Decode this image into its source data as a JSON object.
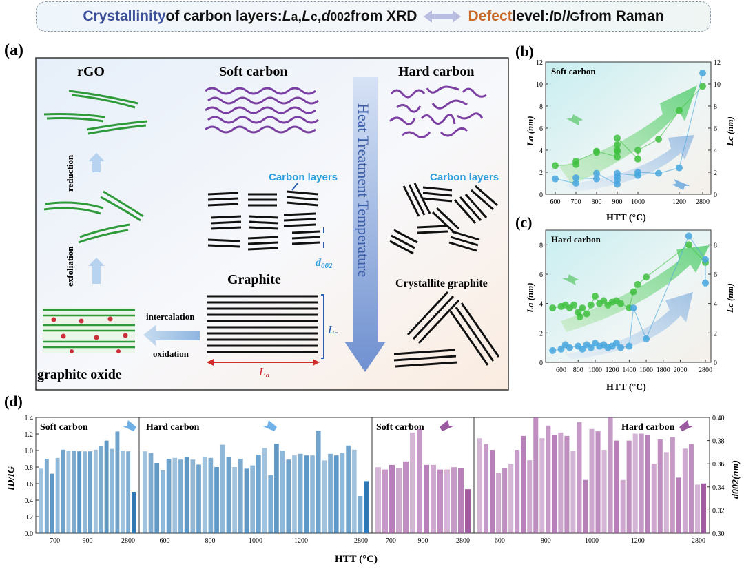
{
  "header": {
    "part1": "Crystallinity",
    "part2": " of carbon layers: ",
    "part3": "L",
    "part4": "a",
    "part5": ", ",
    "part6": "L",
    "part7": "c",
    "part8": ", ",
    "part9": "d",
    "part10": "002",
    "part11": " from XRD",
    "part12": "Defect",
    "part13": " level: ",
    "part14": "I",
    "part15": "D",
    "part16": "/",
    "part17": "I",
    "part18": "G",
    "part19": " from Raman"
  },
  "panel_a": {
    "label": "(a)",
    "rgo": "rGO",
    "soft_carbon": "Soft carbon",
    "hard_carbon": "Hard carbon",
    "heat_treatment": "Heat Treatment Temperature",
    "reduction": "reduction",
    "exfoliation": "exfoliation",
    "intercalation": "intercalation",
    "oxidation": "oxidation",
    "graphite_oxide": "graphite oxide",
    "graphite": "Graphite",
    "carbon_layers_1": "Carbon layers",
    "carbon_layers_2": "Carbon layers",
    "d002": "d",
    "d002_sub": "002",
    "crystallite_graphite": "Crystallite graphite",
    "la": "L",
    "la_sub": "a",
    "lc": "L",
    "lc_sub": "c"
  },
  "chart_data": [
    {
      "panel": "(b)",
      "type": "scatter",
      "title": "Soft carbon",
      "xlabel": "HTT (°C)",
      "ylabel_left": "La (nm)",
      "ylabel_right": "Lc (nm)",
      "x_ticks": [
        "600",
        "700",
        "800",
        "900",
        "1000",
        "1200",
        "2800"
      ],
      "ylim_left": [
        0,
        12
      ],
      "ylim_right": [
        0,
        12
      ],
      "series": [
        {
          "name": "La",
          "axis": "left",
          "color": "#3fbf3f",
          "points": [
            [
              600,
              2.6
            ],
            [
              700,
              2.7
            ],
            [
              700,
              3.0
            ],
            [
              800,
              3.8
            ],
            [
              800,
              3.9
            ],
            [
              900,
              3.4
            ],
            [
              900,
              3.9
            ],
            [
              900,
              4.0
            ],
            [
              900,
              4.5
            ],
            [
              900,
              5.1
            ],
            [
              1000,
              3.2
            ],
            [
              1000,
              4.0
            ],
            [
              1100,
              5.0
            ],
            [
              1200,
              7.6
            ],
            [
              2800,
              9.8
            ]
          ]
        },
        {
          "name": "Lc",
          "axis": "right",
          "color": "#47a6de",
          "points": [
            [
              600,
              1.4
            ],
            [
              700,
              1.0
            ],
            [
              700,
              1.5
            ],
            [
              800,
              1.4
            ],
            [
              800,
              1.9
            ],
            [
              900,
              0.9
            ],
            [
              900,
              1.3
            ],
            [
              900,
              1.6
            ],
            [
              900,
              1.9
            ],
            [
              1000,
              1.7
            ],
            [
              1000,
              2.0
            ],
            [
              1100,
              1.9
            ],
            [
              1200,
              2.4
            ],
            [
              2800,
              11.0
            ]
          ]
        }
      ]
    },
    {
      "panel": "(c)",
      "type": "scatter",
      "title": "Hard carbon",
      "xlabel": "HTT (°C)",
      "ylabel_left": "La (nm)",
      "ylabel_right": "Lc (nm)",
      "x_ticks": [
        "600",
        "800",
        "1000",
        "1200",
        "1400",
        "1600",
        "1800",
        "2000",
        "2800"
      ],
      "ylim_left": [
        0,
        9
      ],
      "ylim_right": [
        0,
        9
      ],
      "series": [
        {
          "name": "La",
          "axis": "left",
          "color": "#3fbf3f",
          "points": [
            [
              500,
              3.7
            ],
            [
              600,
              3.8
            ],
            [
              650,
              3.9
            ],
            [
              700,
              3.7
            ],
            [
              750,
              3.9
            ],
            [
              800,
              3.4
            ],
            [
              820,
              3.1
            ],
            [
              850,
              3.7
            ],
            [
              900,
              3.3
            ],
            [
              950,
              3.9
            ],
            [
              1000,
              4.5
            ],
            [
              1050,
              4.0
            ],
            [
              1100,
              4.2
            ],
            [
              1150,
              3.9
            ],
            [
              1200,
              4.1
            ],
            [
              1250,
              4.2
            ],
            [
              1300,
              4.0
            ],
            [
              1400,
              3.7
            ],
            [
              1450,
              4.8
            ],
            [
              1500,
              5.3
            ],
            [
              1600,
              5.8
            ],
            [
              2100,
              8.0
            ],
            [
              2800,
              6.8
            ]
          ]
        },
        {
          "name": "Lc",
          "axis": "right",
          "color": "#47a6de",
          "points": [
            [
              500,
              0.8
            ],
            [
              600,
              0.9
            ],
            [
              650,
              1.2
            ],
            [
              700,
              1.0
            ],
            [
              800,
              1.1
            ],
            [
              850,
              0.9
            ],
            [
              900,
              1.2
            ],
            [
              950,
              1.0
            ],
            [
              1000,
              1.3
            ],
            [
              1050,
              1.1
            ],
            [
              1100,
              1.2
            ],
            [
              1150,
              1.0
            ],
            [
              1200,
              1.1
            ],
            [
              1250,
              1.3
            ],
            [
              1300,
              1.0
            ],
            [
              1400,
              1.1
            ],
            [
              1450,
              3.7
            ],
            [
              1600,
              1.6
            ],
            [
              2100,
              8.6
            ],
            [
              2800,
              7.0
            ],
            [
              2800,
              5.4
            ]
          ]
        }
      ]
    },
    {
      "panel": "(d)",
      "type": "bar",
      "xlabel": "HTT (°C)",
      "ylabel_left": "ID/IG",
      "ylabel_right": "d002(nm)",
      "ylim_left": [
        0,
        1.4
      ],
      "ylim_right": [
        0.3,
        0.4
      ],
      "left_ticks": [
        "0.0",
        "0.2",
        "0.4",
        "0.6",
        "0.8",
        "1.0",
        "1.2",
        "1.4"
      ],
      "right_ticks": [
        "0.30",
        "0.32",
        "0.34",
        "0.36",
        "0.38",
        "0.40"
      ],
      "groups": [
        {
          "name": "Soft carbon",
          "axis": "left",
          "color": "#2e79b5",
          "x_ticks": [
            "700",
            "900",
            "2800"
          ],
          "values": [
            0.78,
            0.9,
            0.72,
            0.91,
            1.01,
            1.0,
            1.0,
            0.99,
            0.99,
            0.99,
            1.01,
            1.05,
            1.12,
            1.02,
            1.23,
            1.0,
            0.99,
            0.5
          ]
        },
        {
          "name": "Hard carbon",
          "axis": "left",
          "color": "#2e79b5",
          "x_ticks": [
            "600",
            "800",
            "1000",
            "1200",
            "2800"
          ],
          "values": [
            0.99,
            0.97,
            0.85,
            0.76,
            0.9,
            0.91,
            0.89,
            0.92,
            0.89,
            0.83,
            0.92,
            0.91,
            0.8,
            1.07,
            0.92,
            0.8,
            0.9,
            0.78,
            0.82,
            0.95,
            1.03,
            0.7,
            1.08,
            1.0,
            0.89,
            0.94,
            0.96,
            0.94,
            0.94,
            1.24,
            0.88,
            0.96,
            0.94,
            0.97,
            1.06,
            1.01,
            0.45,
            0.63
          ]
        },
        {
          "name": "Soft carbon",
          "axis": "right",
          "color": "#a25aa3",
          "x_ticks": [
            "700",
            "900",
            "2800"
          ],
          "values": [
            0.357,
            0.355,
            0.359,
            0.356,
            0.362,
            0.387,
            0.39,
            0.359,
            0.359,
            0.355,
            0.355,
            0.357,
            0.356,
            0.338
          ]
        },
        {
          "name": "Hard carbon",
          "axis": "right",
          "color": "#a25aa3",
          "x_ticks": [
            "600",
            "800",
            "1000",
            "1200",
            "2800"
          ],
          "values": [
            0.382,
            0.377,
            0.372,
            0.352,
            0.356,
            0.36,
            0.372,
            0.384,
            0.363,
            0.4,
            0.382,
            0.393,
            0.385,
            0.387,
            0.384,
            0.371,
            0.396,
            0.346,
            0.39,
            0.388,
            0.372,
            0.4,
            0.38,
            0.346,
            0.38,
            0.386,
            0.386,
            0.385,
            0.36,
            0.381,
            0.37,
            0.383,
            0.348,
            0.373,
            0.377,
            0.342,
            0.343
          ]
        }
      ]
    }
  ],
  "panel_d_labels": {
    "label": "(d)",
    "soft_carbon_1": "Soft carbon",
    "hard_carbon_1": "Hard carbon",
    "soft_carbon_2": "Soft carbon",
    "hard_carbon_2": "Hard carbon"
  },
  "panel_b_label": "(b)",
  "panel_c_label": "(c)"
}
